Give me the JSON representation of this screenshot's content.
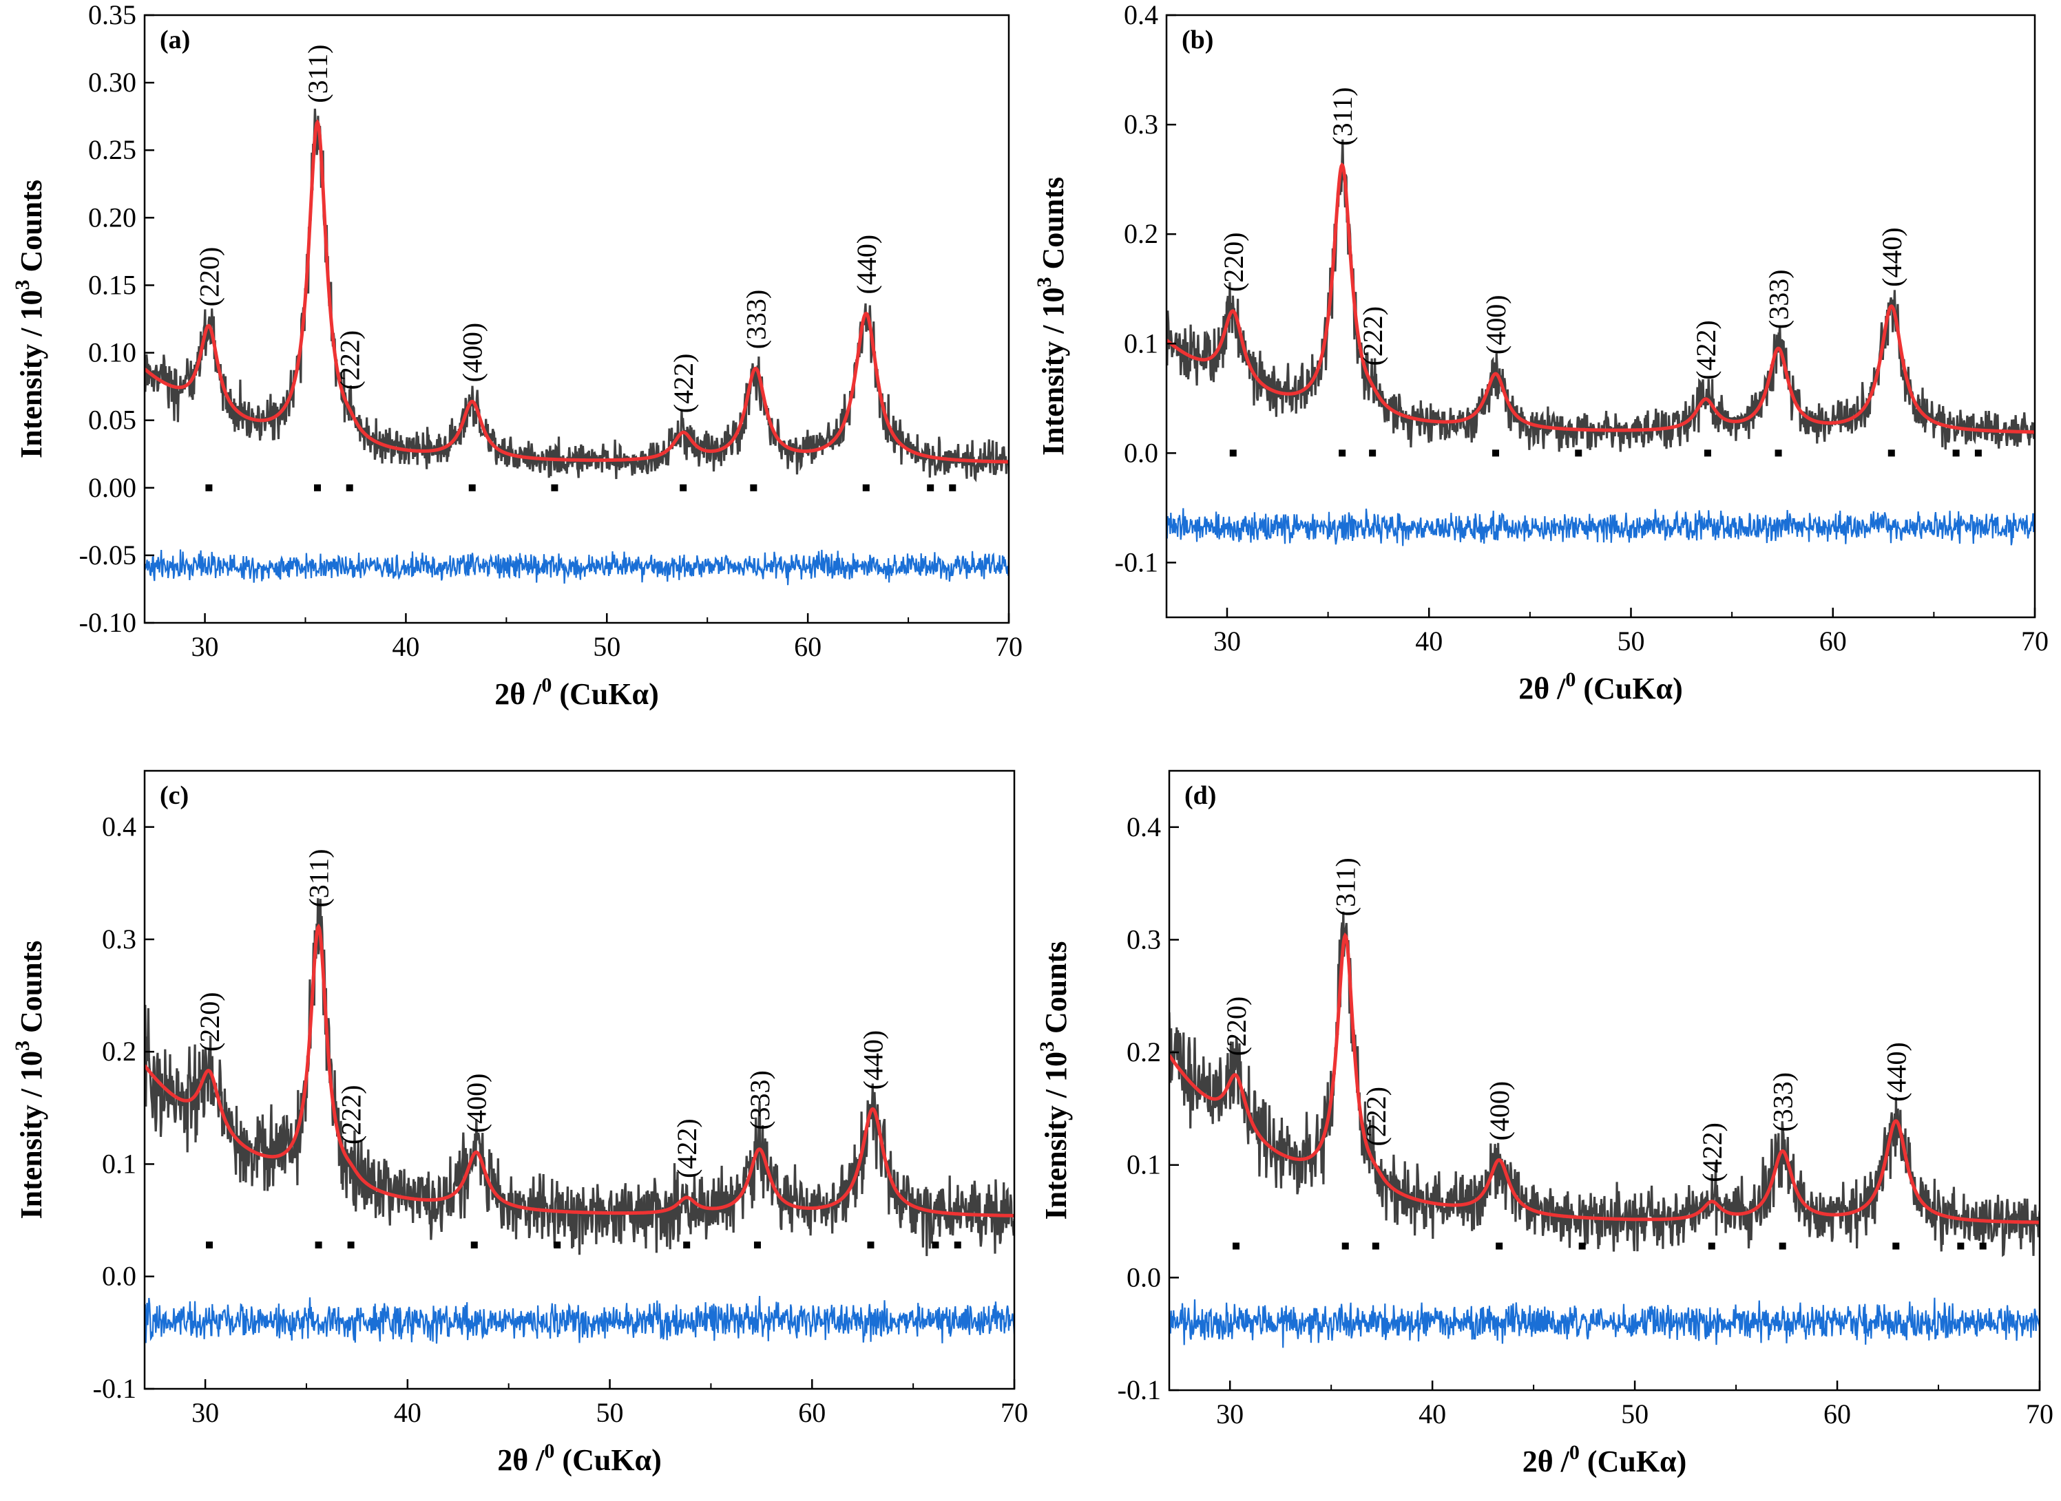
{
  "figure": {
    "panels": [
      "a",
      "b",
      "c",
      "d"
    ]
  },
  "chart_data": [
    {
      "id": "a",
      "type": "line",
      "panel_label": "(a)",
      "xlabel_main": "2θ /",
      "xlabel_sup": "0",
      "xlabel_tail": " (CuKα)",
      "ylabel_main": "Intensity / 10",
      "ylabel_sup": "3",
      "ylabel_tail": " Counts",
      "xlim": [
        27,
        70
      ],
      "ylim": [
        -0.1,
        0.35
      ],
      "xticks": [
        30,
        40,
        50,
        60,
        70
      ],
      "yticks": [
        -0.1,
        -0.05,
        0.0,
        0.05,
        0.1,
        0.15,
        0.2,
        0.25,
        0.3,
        0.35
      ],
      "ytick_labels": [
        "-0.10",
        "-0.05",
        "0.00",
        "0.05",
        "0.10",
        "0.15",
        "0.20",
        "0.25",
        "0.30",
        "0.35"
      ],
      "grid": false,
      "background": {
        "start": 0.085,
        "end": 0.018,
        "valley": 0.02,
        "decay": 9
      },
      "peaks": [
        {
          "hkl": "(220)",
          "x": 30.2,
          "height": 0.065,
          "width": 0.55
        },
        {
          "hkl": "(311)",
          "x": 35.6,
          "height": 0.24,
          "width": 0.55
        },
        {
          "hkl": "(222)",
          "x": 37.2,
          "height": 0.006,
          "width": 0.5
        },
        {
          "hkl": "(400)",
          "x": 43.3,
          "height": 0.042,
          "width": 0.6
        },
        {
          "hkl": "(422)",
          "x": 53.8,
          "height": 0.02,
          "width": 0.6
        },
        {
          "hkl": "(333)",
          "x": 57.4,
          "height": 0.068,
          "width": 0.6
        },
        {
          "hkl": "(440)",
          "x": 62.9,
          "height": 0.11,
          "width": 0.65
        }
      ],
      "bragg_ticks_x": [
        30.2,
        35.6,
        37.2,
        43.3,
        47.4,
        53.8,
        57.3,
        62.9,
        66.1,
        67.2
      ],
      "bragg_ticks_y": 0.0,
      "difference_offset": -0.058,
      "noise": 0.006,
      "diff_noise": 0.005,
      "series": [
        {
          "name": "",
          "role": "observed",
          "color": "#404040"
        },
        {
          "name": "",
          "role": "calculated",
          "color": "#ee3333"
        },
        {
          "name": "",
          "role": "difference",
          "color": "#1a6fd6"
        },
        {
          "name": "",
          "role": "bragg-positions",
          "color": "#000000"
        }
      ]
    },
    {
      "id": "b",
      "type": "line",
      "panel_label": "(b)",
      "xlabel_main": "2θ /",
      "xlabel_sup": "0",
      "xlabel_tail": " (CuKα)",
      "ylabel_main": "Intensity / 10",
      "ylabel_sup": "3",
      "ylabel_tail": " Counts",
      "xlim": [
        27,
        70
      ],
      "ylim": [
        -0.15,
        0.4
      ],
      "xticks": [
        30,
        40,
        50,
        60,
        70
      ],
      "yticks": [
        -0.1,
        0.0,
        0.1,
        0.2,
        0.3,
        0.4
      ],
      "ytick_labels": [
        "-0.1",
        "0.0",
        "0.1",
        "0.2",
        "0.3",
        "0.4"
      ],
      "grid": false,
      "background": {
        "start": 0.1,
        "end": 0.018,
        "valley": 0.022,
        "decay": 9
      },
      "peaks": [
        {
          "hkl": "(220)",
          "x": 30.3,
          "height": 0.068,
          "width": 0.6
        },
        {
          "hkl": "(311)",
          "x": 35.7,
          "height": 0.23,
          "width": 0.55
        },
        {
          "hkl": "(222)",
          "x": 37.2,
          "height": 0.006,
          "width": 0.5
        },
        {
          "hkl": "(400)",
          "x": 43.3,
          "height": 0.05,
          "width": 0.6
        },
        {
          "hkl": "(422)",
          "x": 53.7,
          "height": 0.028,
          "width": 0.6
        },
        {
          "hkl": "(333)",
          "x": 57.3,
          "height": 0.075,
          "width": 0.6
        },
        {
          "hkl": "(440)",
          "x": 62.9,
          "height": 0.115,
          "width": 0.65
        }
      ],
      "bragg_ticks_x": [
        30.3,
        35.7,
        37.2,
        43.3,
        47.4,
        53.8,
        57.3,
        62.9,
        66.1,
        67.2
      ],
      "bragg_ticks_y": 0.0,
      "difference_offset": -0.068,
      "noise": 0.008,
      "diff_noise": 0.007,
      "series": [
        {
          "name": "",
          "role": "observed",
          "color": "#404040"
        },
        {
          "name": "",
          "role": "calculated",
          "color": "#ee3333"
        },
        {
          "name": "",
          "role": "difference",
          "color": "#1a6fd6"
        },
        {
          "name": "",
          "role": "bragg-positions",
          "color": "#000000"
        }
      ]
    },
    {
      "id": "c",
      "type": "line",
      "panel_label": "(c)",
      "xlabel_main": "2θ /",
      "xlabel_sup": "0",
      "xlabel_tail": " (CuKα)",
      "ylabel_main": "Intensity / 10",
      "ylabel_sup": "3",
      "ylabel_tail": " Counts",
      "xlim": [
        27,
        70
      ],
      "ylim": [
        -0.1,
        0.45
      ],
      "xticks": [
        30,
        40,
        50,
        60,
        70
      ],
      "yticks": [
        -0.1,
        0.0,
        0.1,
        0.2,
        0.3,
        0.4
      ],
      "ytick_labels": [
        "-0.1",
        "0.0",
        "0.1",
        "0.2",
        "0.3",
        "0.4"
      ],
      "grid": false,
      "background": {
        "start": 0.185,
        "end": 0.053,
        "valley": 0.05,
        "decay": 8
      },
      "peaks": [
        {
          "hkl": "(220)",
          "x": 30.2,
          "height": 0.055,
          "width": 0.6
        },
        {
          "hkl": "(311)",
          "x": 35.6,
          "height": 0.23,
          "width": 0.5
        },
        {
          "hkl": "(222)",
          "x": 37.2,
          "height": 0.006,
          "width": 0.5
        },
        {
          "hkl": "(400)",
          "x": 43.4,
          "height": 0.05,
          "width": 0.6
        },
        {
          "hkl": "(422)",
          "x": 53.8,
          "height": 0.014,
          "width": 0.55
        },
        {
          "hkl": "(333)",
          "x": 57.4,
          "height": 0.058,
          "width": 0.6
        },
        {
          "hkl": "(440)",
          "x": 63.0,
          "height": 0.095,
          "width": 0.65
        }
      ],
      "bragg_ticks_x": [
        30.2,
        35.6,
        37.2,
        43.3,
        47.4,
        53.8,
        57.3,
        62.9,
        66.1,
        67.2
      ],
      "bragg_ticks_y": 0.028,
      "difference_offset": -0.04,
      "noise": 0.01,
      "diff_noise": 0.008,
      "series": [
        {
          "name": "",
          "role": "observed",
          "color": "#404040"
        },
        {
          "name": "",
          "role": "calculated",
          "color": "#ee3333"
        },
        {
          "name": "",
          "role": "difference",
          "color": "#1a6fd6"
        },
        {
          "name": "",
          "role": "bragg-positions",
          "color": "#000000"
        }
      ]
    },
    {
      "id": "d",
      "type": "line",
      "panel_label": "(d)",
      "xlabel_main": "2θ /",
      "xlabel_sup": "0",
      "xlabel_tail": " (CuKα)",
      "ylabel_main": "Intensity / 10",
      "ylabel_sup": "3",
      "ylabel_tail": " Counts",
      "xlim": [
        27,
        70
      ],
      "ylim": [
        -0.1,
        0.45
      ],
      "xticks": [
        30,
        40,
        50,
        60,
        70
      ],
      "yticks": [
        -0.1,
        0.0,
        0.1,
        0.2,
        0.3,
        0.4
      ],
      "ytick_labels": [
        "-0.1",
        "0.0",
        "0.1",
        "0.2",
        "0.3",
        "0.4"
      ],
      "grid": false,
      "background": {
        "start": 0.195,
        "end": 0.048,
        "valley": 0.045,
        "decay": 8
      },
      "peaks": [
        {
          "hkl": "(220)",
          "x": 30.3,
          "height": 0.05,
          "width": 0.6
        },
        {
          "hkl": "(311)",
          "x": 35.7,
          "height": 0.225,
          "width": 0.5
        },
        {
          "hkl": "(222)",
          "x": 37.2,
          "height": 0.006,
          "width": 0.5
        },
        {
          "hkl": "(400)",
          "x": 43.3,
          "height": 0.048,
          "width": 0.6
        },
        {
          "hkl": "(422)",
          "x": 53.8,
          "height": 0.016,
          "width": 0.55
        },
        {
          "hkl": "(333)",
          "x": 57.3,
          "height": 0.062,
          "width": 0.6
        },
        {
          "hkl": "(440)",
          "x": 62.9,
          "height": 0.09,
          "width": 0.65
        }
      ],
      "bragg_ticks_x": [
        30.3,
        35.7,
        37.2,
        43.3,
        47.4,
        53.8,
        57.3,
        62.9,
        66.1,
        67.2
      ],
      "bragg_ticks_y": 0.028,
      "difference_offset": -0.04,
      "noise": 0.009,
      "diff_noise": 0.008,
      "series": [
        {
          "name": "",
          "role": "observed",
          "color": "#404040"
        },
        {
          "name": "",
          "role": "calculated",
          "color": "#ee3333"
        },
        {
          "name": "",
          "role": "difference",
          "color": "#1a6fd6"
        },
        {
          "name": "",
          "role": "bragg-positions",
          "color": "#000000"
        }
      ]
    }
  ]
}
